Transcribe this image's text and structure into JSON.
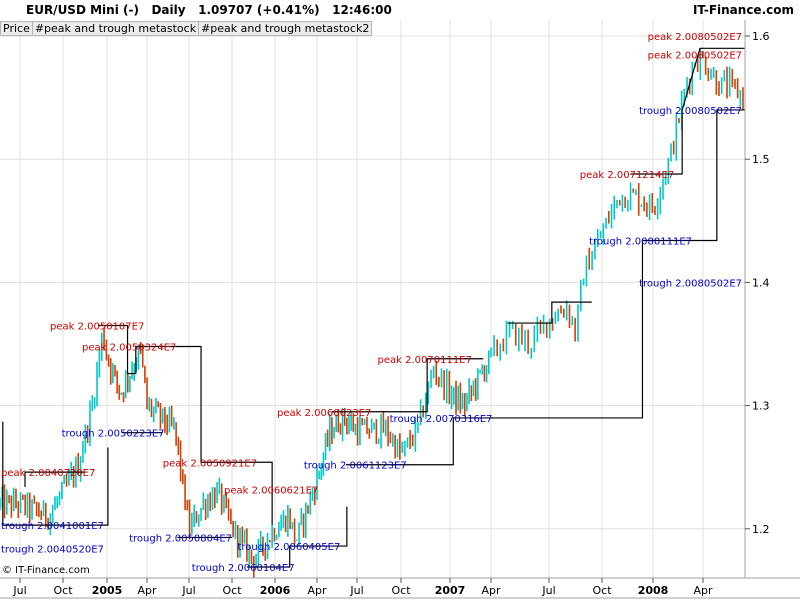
{
  "header": {
    "title": "EUR/USD Mini (-)   Daily   1.09707 (+0.41%)   12:46:00",
    "site": "IT-Finance.com",
    "icon": "candlestick-icon"
  },
  "tabs": [
    "Price",
    "#peak and trough metastock",
    "#peak and trough metastock2"
  ],
  "copyright": "© IT-Finance.com",
  "colors": {
    "up": "#00c8c8",
    "down": "#d04000",
    "peak": "#cc0000",
    "trough": "#0000cc",
    "step": "#000000",
    "grid": "#e0e0e0"
  },
  "chart_data": {
    "type": "line",
    "title": "EUR/USD Mini (-) Daily",
    "x_unit": "months since Jul 2004",
    "ylim": [
      1.15,
      1.62
    ],
    "y_ticks": [
      1.2,
      1.3,
      1.4,
      1.5,
      1.6
    ],
    "x_ticks": [
      {
        "label": "Jul",
        "m": 0,
        "bold": false
      },
      {
        "label": "Oct",
        "m": 3,
        "bold": false
      },
      {
        "label": "2005",
        "m": 6,
        "bold": true
      },
      {
        "label": "Apr",
        "m": 9,
        "bold": false
      },
      {
        "label": "Jul",
        "m": 12,
        "bold": false
      },
      {
        "label": "Oct",
        "m": 15,
        "bold": false
      },
      {
        "label": "2006",
        "m": 18,
        "bold": true
      },
      {
        "label": "Apr",
        "m": 21,
        "bold": false
      },
      {
        "label": "Jul",
        "m": 24,
        "bold": false
      },
      {
        "label": "Oct",
        "m": 27,
        "bold": false
      },
      {
        "label": "2007",
        "m": 30,
        "bold": true
      },
      {
        "label": "Apr",
        "m": 33,
        "bold": false
      },
      {
        "label": "Jul",
        "m": 36,
        "bold": false
      },
      {
        "label": "Oct",
        "m": 39,
        "bold": false
      },
      {
        "label": "2008",
        "m": 42,
        "bold": true
      },
      {
        "label": "Apr",
        "m": 45,
        "bold": false
      }
    ],
    "price_path": [
      [
        -1.4,
        1.22
      ],
      [
        0,
        1.22
      ],
      [
        2,
        1.21
      ],
      [
        3,
        1.23
      ],
      [
        4,
        1.25
      ],
      [
        5,
        1.3
      ],
      [
        5.7,
        1.36
      ],
      [
        6,
        1.34
      ],
      [
        7,
        1.31
      ],
      [
        8.5,
        1.345
      ],
      [
        9,
        1.3
      ],
      [
        11,
        1.28
      ],
      [
        12,
        1.2
      ],
      [
        13,
        1.22
      ],
      [
        14,
        1.23
      ],
      [
        15,
        1.2
      ],
      [
        16.5,
        1.175
      ],
      [
        18,
        1.2
      ],
      [
        19,
        1.21
      ],
      [
        19.5,
        1.19
      ],
      [
        21,
        1.24
      ],
      [
        22,
        1.28
      ],
      [
        23,
        1.29
      ],
      [
        24,
        1.28
      ],
      [
        26,
        1.28
      ],
      [
        27,
        1.26
      ],
      [
        28,
        1.28
      ],
      [
        29,
        1.33
      ],
      [
        30,
        1.31
      ],
      [
        31,
        1.3
      ],
      [
        32,
        1.32
      ],
      [
        33,
        1.34
      ],
      [
        34,
        1.36
      ],
      [
        35,
        1.35
      ],
      [
        36,
        1.37
      ],
      [
        37,
        1.38
      ],
      [
        37.5,
        1.36
      ],
      [
        38,
        1.41
      ],
      [
        39,
        1.44
      ],
      [
        40,
        1.47
      ],
      [
        41,
        1.47
      ],
      [
        42,
        1.46
      ],
      [
        43,
        1.5
      ],
      [
        44,
        1.56
      ],
      [
        44.5,
        1.58
      ],
      [
        45,
        1.58
      ],
      [
        46,
        1.56
      ],
      [
        46.5,
        1.56
      ],
      [
        47.5,
        1.55
      ]
    ],
    "step_lines": [
      [
        [
          -1.2,
          1.287
        ],
        [
          -1.2,
          1.203
        ],
        [
          6.07,
          1.203
        ],
        [
          6.07,
          1.266
        ]
      ],
      [
        [
          0.35,
          1.234
        ],
        [
          0.35,
          1.246
        ],
        [
          4.54,
          1.246
        ]
      ],
      [
        [
          5.4,
          1.365
        ],
        [
          7.54,
          1.365
        ],
        [
          7.54,
          1.326
        ],
        [
          8.16,
          1.326
        ],
        [
          8.16,
          1.348
        ],
        [
          12.84,
          1.348
        ],
        [
          12.84,
          1.254
        ],
        [
          17.8,
          1.254
        ],
        [
          17.8,
          1.203
        ]
      ],
      [
        [
          7.12,
          1.278
        ],
        [
          10.12,
          1.278
        ]
      ],
      [
        [
          11.17,
          1.193
        ],
        [
          15.0,
          1.193
        ]
      ],
      [
        [
          16.05,
          1.169
        ],
        [
          19.05,
          1.169
        ],
        [
          19.05,
          1.186
        ],
        [
          23.24,
          1.186
        ],
        [
          23.24,
          1.218
        ]
      ],
      [
        [
          22.12,
          1.295
        ],
        [
          28.6,
          1.295
        ],
        [
          28.6,
          1.338
        ],
        [
          32.43,
          1.338
        ]
      ],
      [
        [
          23.17,
          1.252
        ],
        [
          30.24,
          1.252
        ],
        [
          30.24,
          1.29
        ],
        [
          41.38,
          1.29
        ],
        [
          41.38,
          1.434
        ],
        [
          45.83,
          1.434
        ],
        [
          45.83,
          1.54
        ],
        [
          47.5,
          1.54
        ]
      ],
      [
        [
          33.85,
          1.367
        ],
        [
          36.16,
          1.367
        ],
        [
          36.16,
          1.384
        ],
        [
          38.42,
          1.384
        ]
      ],
      [
        [
          40.67,
          1.488
        ],
        [
          43.75,
          1.488
        ],
        [
          43.75,
          1.54
        ],
        [
          44.82,
          1.59
        ],
        [
          47.5,
          1.59
        ]
      ]
    ],
    "annotations": [
      {
        "text": "peak 2.0040720E7",
        "m": 3.49,
        "p": 1.246,
        "kind": "peak",
        "anchor": "end"
      },
      {
        "text": "trough 2.0041001E7",
        "m": 5.0,
        "p": 1.203,
        "kind": "trough",
        "anchor": "end"
      },
      {
        "text": "trough 2.0040520E7",
        "m": 1.6,
        "p": 1.184,
        "kind": "trough",
        "anchor": "end"
      },
      {
        "text": "peak 2.0050107E7",
        "m": 8.8,
        "p": 1.365,
        "kind": "peak",
        "anchor": "end"
      },
      {
        "text": "peak 2.0050324E7",
        "m": 11.1,
        "p": 1.348,
        "kind": "peak",
        "anchor": "end"
      },
      {
        "text": "trough 2.0050223E7",
        "m": 10.25,
        "p": 1.278,
        "kind": "trough",
        "anchor": "end"
      },
      {
        "text": "peak 2.0050921E7",
        "m": 16.75,
        "p": 1.254,
        "kind": "peak",
        "anchor": "end"
      },
      {
        "text": "trough 2.0050804E7",
        "m": 15.0,
        "p": 1.193,
        "kind": "trough",
        "anchor": "end"
      },
      {
        "text": "trough 2.0060104E7",
        "m": 19.4,
        "p": 1.169,
        "kind": "trough",
        "anchor": "end"
      },
      {
        "text": "peak 2.0060621E7",
        "m": 21.1,
        "p": 1.232,
        "kind": "peak",
        "anchor": "end"
      },
      {
        "text": "trough 2.0060405E7",
        "m": 22.75,
        "p": 1.186,
        "kind": "trough",
        "anchor": "end"
      },
      {
        "text": "peak 2.0060623E7",
        "m": 24.98,
        "p": 1.295,
        "kind": "peak",
        "anchor": "end"
      },
      {
        "text": "trough 2.0061123E7",
        "m": 27.35,
        "p": 1.252,
        "kind": "trough",
        "anchor": "end"
      },
      {
        "text": "peak 2.0070111E7",
        "m": 31.6,
        "p": 1.338,
        "kind": "peak",
        "anchor": "end"
      },
      {
        "text": "trough 2.0070316E7",
        "m": 33.08,
        "p": 1.29,
        "kind": "trough",
        "anchor": "end"
      },
      {
        "text": "peak 2.0071214E7",
        "m": 43.27,
        "p": 1.488,
        "kind": "peak",
        "anchor": "end"
      },
      {
        "text": "trough 2.0080111E7",
        "m": 44.34,
        "p": 1.434,
        "kind": "trough",
        "anchor": "end"
      },
      {
        "text": "peak 2.0080502E7",
        "m": 43.0,
        "p": 1.6,
        "kind": "peak",
        "anchor": "start"
      },
      {
        "text": "peak 2.0080502E7",
        "m": 45.5,
        "p": 1.594,
        "kind": "peak",
        "anchor": "start"
      },
      {
        "text": "trough 2.0080502E7",
        "m": 46.0,
        "p": 1.54,
        "kind": "trough",
        "anchor": "start"
      },
      {
        "text": "trough 2.0080502E7",
        "m": 47.3,
        "p": 1.4,
        "kind": "trough",
        "anchor": "start"
      }
    ]
  }
}
